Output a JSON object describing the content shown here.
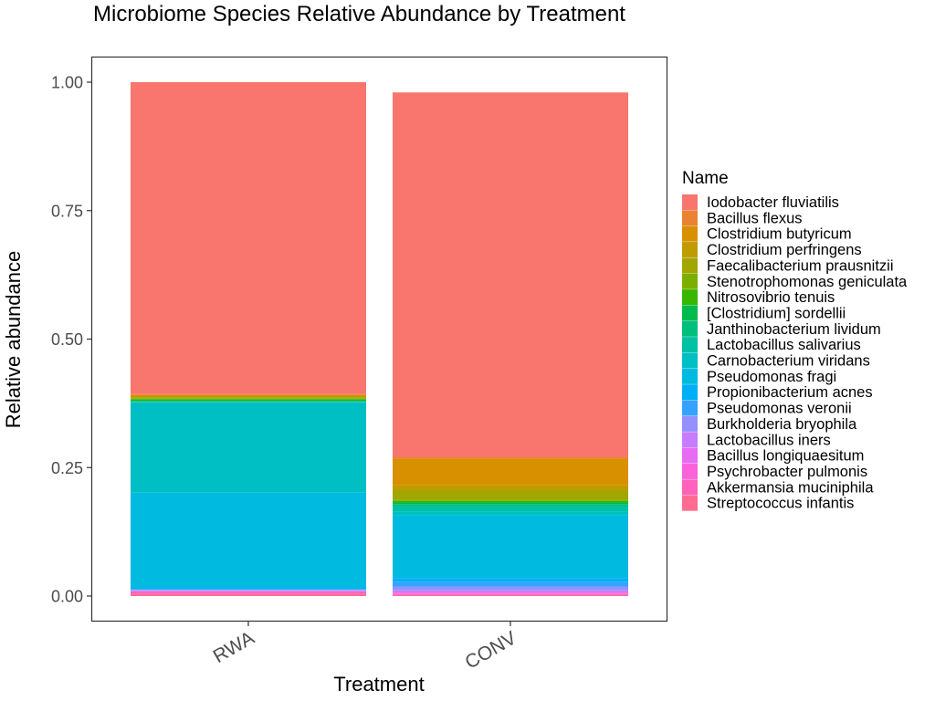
{
  "chart_data": {
    "type": "bar",
    "stacked": true,
    "title": "Microbiome Species Relative Abundance by Treatment",
    "xlabel": "Treatment",
    "ylabel": "Relative abundance",
    "ylim": [
      -0.05,
      1.05
    ],
    "yticks": [
      "0.00",
      "0.25",
      "0.50",
      "0.75",
      "1.00"
    ],
    "ytick_values": [
      0,
      0.25,
      0.5,
      0.75,
      1.0
    ],
    "categories": [
      "RWA",
      "CONV"
    ],
    "grid": false,
    "legend_title": "Name",
    "legend_position": "right",
    "series": [
      {
        "name": "Iodobacter fluviatilis",
        "color": "#F8766D",
        "values": [
          0.607,
          0.71
        ]
      },
      {
        "name": "Bacillus flexus",
        "color": "#EA8331",
        "values": [
          0.002,
          0.002
        ]
      },
      {
        "name": "Clostridium butyricum",
        "color": "#D89000",
        "values": [
          0.002,
          0.052
        ]
      },
      {
        "name": "Clostridium perfringens",
        "color": "#C09B00",
        "values": [
          0.002,
          0.01
        ]
      },
      {
        "name": "Faecalibacterium prausnitzii",
        "color": "#A3A500",
        "values": [
          0.002,
          0.018
        ]
      },
      {
        "name": "Stenotrophomonas geniculata",
        "color": "#7CAE00",
        "values": [
          0.002,
          0.003
        ]
      },
      {
        "name": "Nitrosovibrio tenuis",
        "color": "#39B600",
        "values": [
          0.002,
          0.003
        ]
      },
      {
        "name": "[Clostridium] sordellii",
        "color": "#00BB4E",
        "values": [
          0.002,
          0.003
        ]
      },
      {
        "name": "Janthinobacterium lividum",
        "color": "#00BF7D",
        "values": [
          0.001,
          0.004
        ]
      },
      {
        "name": "Lactobacillus salivarius",
        "color": "#00C1A3",
        "values": [
          0.001,
          0.01
        ]
      },
      {
        "name": "Carnobacterium viridans",
        "color": "#00BFC4",
        "values": [
          0.175,
          0.008
        ]
      },
      {
        "name": "Pseudomonas fragi",
        "color": "#00BAE0",
        "values": [
          0.186,
          0.122
        ]
      },
      {
        "name": "Propionibacterium acnes",
        "color": "#00B0F6",
        "values": [
          0.003,
          0.007
        ]
      },
      {
        "name": "Pseudomonas veronii",
        "color": "#35A2FF",
        "values": [
          0.001,
          0.01
        ]
      },
      {
        "name": "Burkholderia bryophila",
        "color": "#9590FF",
        "values": [
          0.001,
          0.007
        ]
      },
      {
        "name": "Lactobacillus iners",
        "color": "#C77CFF",
        "values": [
          0.001,
          0.003
        ]
      },
      {
        "name": "Bacillus longiquaesitum",
        "color": "#E76BF3",
        "values": [
          0.001,
          0.002
        ]
      },
      {
        "name": "Psychrobacter pulmonis",
        "color": "#FA62DB",
        "values": [
          0.001,
          0.002
        ]
      },
      {
        "name": "Akkermansia muciniphila",
        "color": "#FF62BC",
        "values": [
          0.004,
          0.002
        ]
      },
      {
        "name": "Streptococcus infantis",
        "color": "#FF6C91",
        "values": [
          0.004,
          0.002
        ]
      }
    ]
  }
}
